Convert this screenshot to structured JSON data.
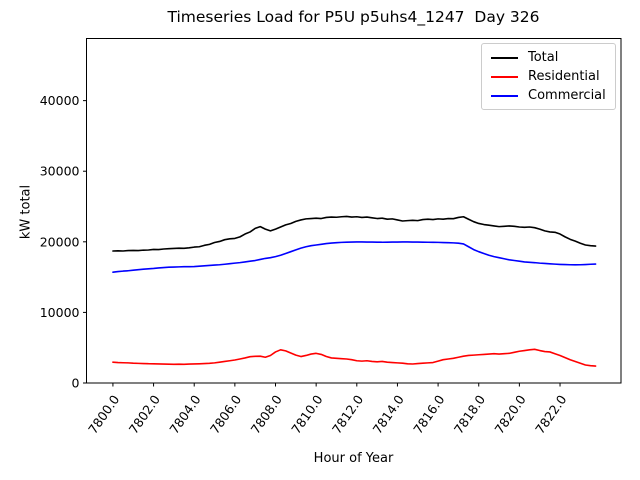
{
  "figure": {
    "title": "Timeseries Load for P5U p5uhs4_1247  Day 326",
    "background_color": "#ffffff"
  },
  "axes": {
    "xlabel": "Hour of Year",
    "ylabel": "kW total",
    "xlim": [
      7798.7,
      7825.0
    ],
    "ylim": [
      0,
      48800
    ],
    "x_tick_values": [
      7800,
      7802,
      7804,
      7806,
      7808,
      7810,
      7812,
      7814,
      7816,
      7818,
      7820,
      7822
    ],
    "x_tick_labels": [
      "7800.0",
      "7802.0",
      "7804.0",
      "7806.0",
      "7808.0",
      "7810.0",
      "7812.0",
      "7814.0",
      "7816.0",
      "7818.0",
      "7820.0",
      "7822.0"
    ],
    "x_tick_rotation_deg": -55,
    "y_tick_values": [
      0,
      10000,
      20000,
      30000,
      40000
    ],
    "y_tick_labels": [
      "0",
      "10000",
      "20000",
      "30000",
      "40000"
    ],
    "spine_color": "#000000",
    "grid": false
  },
  "legend": {
    "position": "upper right",
    "entries": [
      {
        "label": "Total",
        "color": "#000000"
      },
      {
        "label": "Residential",
        "color": "#ff0000"
      },
      {
        "label": "Commercial",
        "color": "#0000ff"
      }
    ]
  },
  "chart_data": {
    "type": "line",
    "title": "Timeseries Load for P5U p5uhs4_1247  Day 326",
    "xlabel": "Hour of Year",
    "ylabel": "kW total",
    "xlim": [
      7798.7,
      7825.0
    ],
    "ylim": [
      0,
      48800
    ],
    "grid": false,
    "legend_position": "upper right",
    "x": [
      7800.0,
      7800.25,
      7800.5,
      7800.75,
      7801.0,
      7801.25,
      7801.5,
      7801.75,
      7802.0,
      7802.25,
      7802.5,
      7802.75,
      7803.0,
      7803.25,
      7803.5,
      7803.75,
      7804.0,
      7804.25,
      7804.5,
      7804.75,
      7805.0,
      7805.25,
      7805.5,
      7805.75,
      7806.0,
      7806.25,
      7806.5,
      7806.75,
      7807.0,
      7807.25,
      7807.5,
      7807.75,
      7808.0,
      7808.25,
      7808.5,
      7808.75,
      7809.0,
      7809.25,
      7809.5,
      7809.75,
      7810.0,
      7810.25,
      7810.5,
      7810.75,
      7811.0,
      7811.25,
      7811.5,
      7811.75,
      7812.0,
      7812.25,
      7812.5,
      7812.75,
      7813.0,
      7813.25,
      7813.5,
      7813.75,
      7814.0,
      7814.25,
      7814.5,
      7814.75,
      7815.0,
      7815.25,
      7815.5,
      7815.75,
      7816.0,
      7816.25,
      7816.5,
      7816.75,
      7817.0,
      7817.25,
      7817.5,
      7817.75,
      7818.0,
      7818.25,
      7818.5,
      7818.75,
      7819.0,
      7819.25,
      7819.5,
      7819.75,
      7820.0,
      7820.25,
      7820.5,
      7820.75,
      7821.0,
      7821.25,
      7821.5,
      7821.75,
      7822.0,
      7822.25,
      7822.5,
      7822.75,
      7823.0,
      7823.25,
      7823.5,
      7823.75
    ],
    "series": [
      {
        "name": "Total",
        "color": "#000000",
        "values": [
          18700,
          18720,
          18700,
          18760,
          18780,
          18760,
          18820,
          18840,
          18920,
          18900,
          18980,
          19020,
          19060,
          19100,
          19080,
          19150,
          19250,
          19300,
          19500,
          19640,
          19900,
          20050,
          20300,
          20420,
          20480,
          20700,
          21100,
          21400,
          21900,
          22150,
          21800,
          21550,
          21800,
          22100,
          22400,
          22600,
          22900,
          23100,
          23250,
          23300,
          23350,
          23300,
          23450,
          23500,
          23480,
          23550,
          23600,
          23500,
          23550,
          23450,
          23500,
          23400,
          23300,
          23350,
          23200,
          23250,
          23100,
          22950,
          23000,
          23050,
          23000,
          23150,
          23200,
          23150,
          23250,
          23200,
          23300,
          23280,
          23450,
          23550,
          23200,
          22850,
          22600,
          22450,
          22350,
          22250,
          22150,
          22200,
          22250,
          22200,
          22100,
          22050,
          22100,
          22000,
          21800,
          21550,
          21400,
          21350,
          21100,
          20700,
          20350,
          20100,
          19800,
          19550,
          19450,
          19400
        ]
      },
      {
        "name": "Residential",
        "color": "#ff0000",
        "values": [
          2950,
          2900,
          2870,
          2850,
          2800,
          2780,
          2760,
          2730,
          2720,
          2700,
          2680,
          2660,
          2650,
          2670,
          2650,
          2680,
          2700,
          2720,
          2750,
          2790,
          2850,
          2950,
          3050,
          3150,
          3260,
          3400,
          3550,
          3725,
          3780,
          3800,
          3650,
          3900,
          4400,
          4700,
          4550,
          4250,
          3950,
          3750,
          3900,
          4100,
          4200,
          4050,
          3750,
          3550,
          3500,
          3450,
          3400,
          3300,
          3150,
          3100,
          3150,
          3050,
          3000,
          3050,
          2950,
          2900,
          2850,
          2800,
          2720,
          2690,
          2750,
          2800,
          2850,
          2900,
          3100,
          3300,
          3400,
          3500,
          3650,
          3800,
          3900,
          3950,
          4000,
          4050,
          4100,
          4150,
          4100,
          4150,
          4200,
          4350,
          4500,
          4600,
          4700,
          4770,
          4600,
          4450,
          4400,
          4150,
          3900,
          3600,
          3300,
          3050,
          2800,
          2550,
          2450,
          2400
        ]
      },
      {
        "name": "Commercial",
        "color": "#0000ff",
        "values": [
          15700,
          15780,
          15850,
          15900,
          15980,
          16050,
          16120,
          16180,
          16230,
          16300,
          16350,
          16400,
          16420,
          16450,
          16470,
          16480,
          16500,
          16550,
          16600,
          16650,
          16700,
          16750,
          16820,
          16900,
          16980,
          17050,
          17150,
          17250,
          17350,
          17500,
          17650,
          17750,
          17900,
          18100,
          18350,
          18600,
          18850,
          19100,
          19300,
          19450,
          19550,
          19650,
          19750,
          19820,
          19870,
          19920,
          19950,
          19970,
          19980,
          19980,
          19970,
          19960,
          19950,
          19940,
          19950,
          19960,
          19970,
          19980,
          19980,
          19970,
          19960,
          19950,
          19940,
          19930,
          19920,
          19900,
          19880,
          19850,
          19800,
          19700,
          19300,
          18900,
          18600,
          18350,
          18100,
          17900,
          17750,
          17600,
          17450,
          17350,
          17250,
          17150,
          17100,
          17050,
          16980,
          16930,
          16880,
          16840,
          16800,
          16770,
          16750,
          16740,
          16750,
          16780,
          16820,
          16850
        ]
      }
    ]
  }
}
